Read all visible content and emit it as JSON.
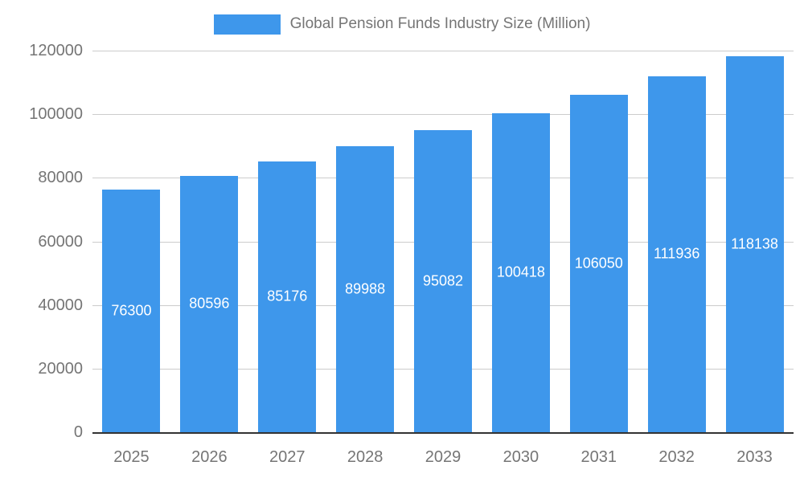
{
  "chart_data": {
    "type": "bar",
    "title": "Global Pension Funds Industry Size (Million)",
    "categories": [
      "2025",
      "2026",
      "2027",
      "2028",
      "2029",
      "2030",
      "2031",
      "2032",
      "2033"
    ],
    "values": [
      76300,
      80596,
      85176,
      89988,
      95082,
      100418,
      106050,
      111936,
      118138
    ],
    "xlabel": "",
    "ylabel": "",
    "ylim": [
      0,
      120000
    ],
    "yticks": [
      0,
      20000,
      40000,
      60000,
      80000,
      100000,
      120000
    ],
    "grid": true,
    "legend_position": "top",
    "value_labels_inside_bars": true,
    "colors": {
      "bar": "#3E97EB",
      "axis_text": "#757575",
      "gridline": "#cccccc",
      "baseline": "#333333",
      "value_label": "#ffffff",
      "background": "#ffffff"
    }
  }
}
